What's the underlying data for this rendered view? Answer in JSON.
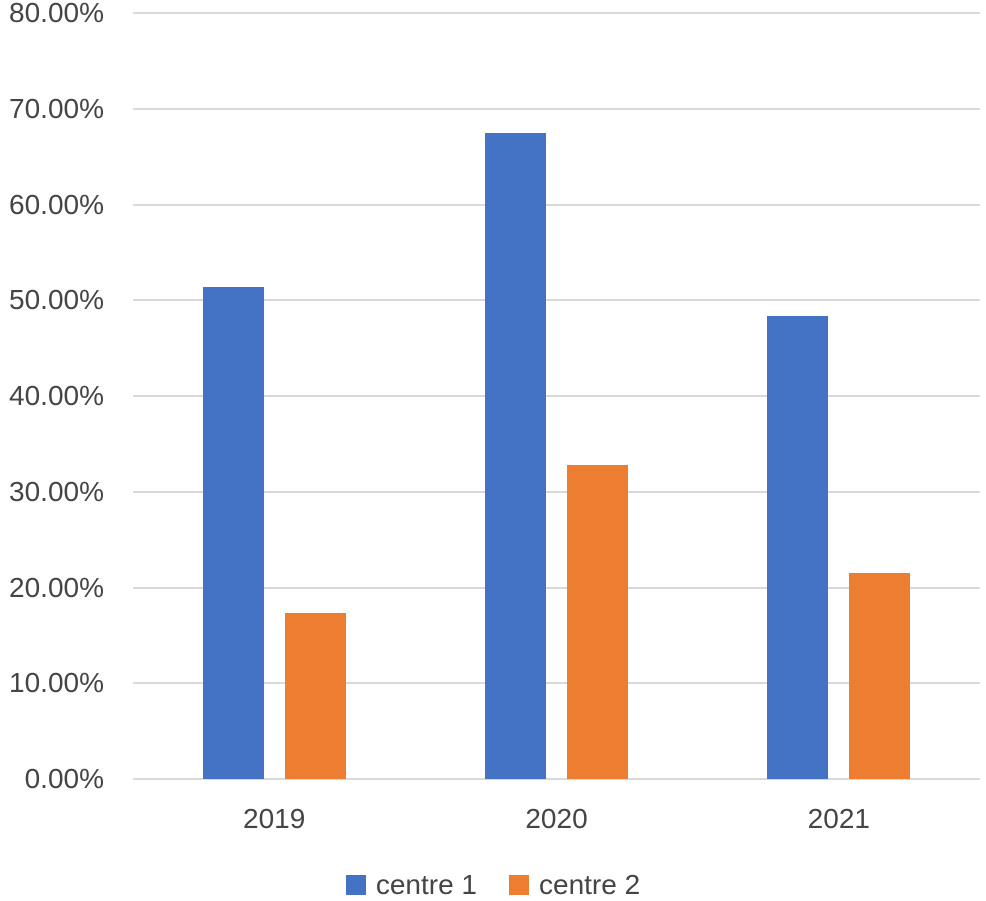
{
  "chart_data": {
    "type": "bar",
    "title": "",
    "categories": [
      "2019",
      "2020",
      "2021"
    ],
    "series": [
      {
        "name": "centre 1",
        "color": "#4472C4",
        "values": [
          51.4,
          67.5,
          48.4
        ]
      },
      {
        "name": "centre 2",
        "color": "#ED7D31",
        "values": [
          17.3,
          32.8,
          21.5
        ]
      }
    ],
    "xlabel": "",
    "ylabel": "",
    "y_axis": {
      "min": 0,
      "max": 80,
      "step": 10,
      "unit": "%",
      "tick_labels": [
        "0.00%",
        "10.00%",
        "20.00%",
        "30.00%",
        "40.00%",
        "50.00%",
        "60.00%",
        "70.00%",
        "80.00%"
      ]
    },
    "grid": true,
    "legend": {
      "position": "bottom",
      "entries": [
        "centre 1",
        "centre 2"
      ]
    },
    "colors": {
      "background": "#FFFFFF",
      "gridline": "#D9D9D9",
      "axis_text": "#454545",
      "series_1": "#4472C4",
      "series_2": "#ED7D31"
    }
  }
}
